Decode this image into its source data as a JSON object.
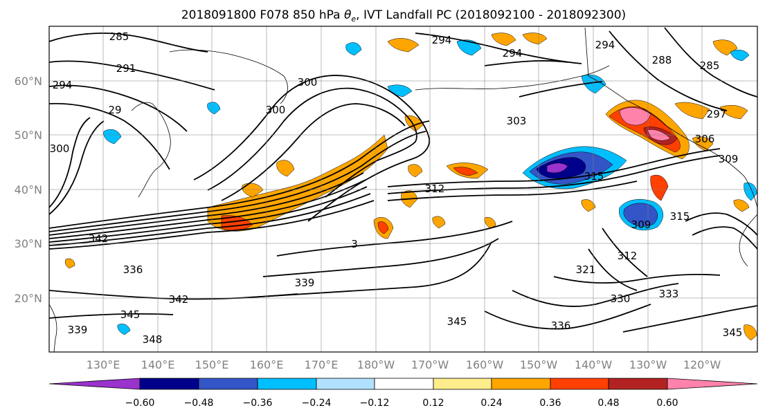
{
  "title": {
    "prefix": "2018091800 F078 850 hPa ",
    "theta": "θ",
    "theta_sub": "e",
    "suffix": ", IVT Landfall PC (2018092100 - 2018092300)"
  },
  "map": {
    "lon_ticks": [
      "130°E",
      "140°E",
      "150°E",
      "160°E",
      "170°E",
      "180°W",
      "170°W",
      "160°W",
      "150°W",
      "140°W",
      "130°W",
      "120°W"
    ],
    "lat_ticks": [
      "60°N",
      "50°N",
      "40°N",
      "30°N",
      "20°N"
    ],
    "grid": true
  },
  "contour_labels": [
    {
      "text": "285"
    },
    {
      "text": "291"
    },
    {
      "text": "294"
    },
    {
      "text": "294"
    },
    {
      "text": "29"
    },
    {
      "text": "300"
    },
    {
      "text": "300"
    },
    {
      "text": "300"
    },
    {
      "text": "294"
    },
    {
      "text": "294"
    },
    {
      "text": "303"
    },
    {
      "text": "288"
    },
    {
      "text": "285"
    },
    {
      "text": "297"
    },
    {
      "text": "306"
    },
    {
      "text": "309"
    },
    {
      "text": "312"
    },
    {
      "text": "315"
    },
    {
      "text": "309"
    },
    {
      "text": "315"
    },
    {
      "text": "312"
    },
    {
      "text": "321"
    },
    {
      "text": "333"
    },
    {
      "text": "330"
    },
    {
      "text": "336"
    },
    {
      "text": "345"
    },
    {
      "text": "345"
    },
    {
      "text": "342"
    },
    {
      "text": "339"
    },
    {
      "text": "339"
    },
    {
      "text": "345"
    },
    {
      "text": "348"
    },
    {
      "text": "336"
    },
    {
      "text": "342"
    },
    {
      "text": "3"
    }
  ],
  "colorbar": {
    "ticks": [
      "−0.60",
      "−0.48",
      "−0.36",
      "−0.24",
      "−0.12",
      "0.12",
      "0.24",
      "0.36",
      "0.48",
      "0.60"
    ],
    "colors": [
      "#9a32cd",
      "#00008b",
      "#3455c8",
      "#00bfff",
      "#b0e2ff",
      "#ffffff",
      "#ffec8b",
      "#ffa500",
      "#ff4000",
      "#b22222",
      "#ff82ab"
    ]
  }
}
